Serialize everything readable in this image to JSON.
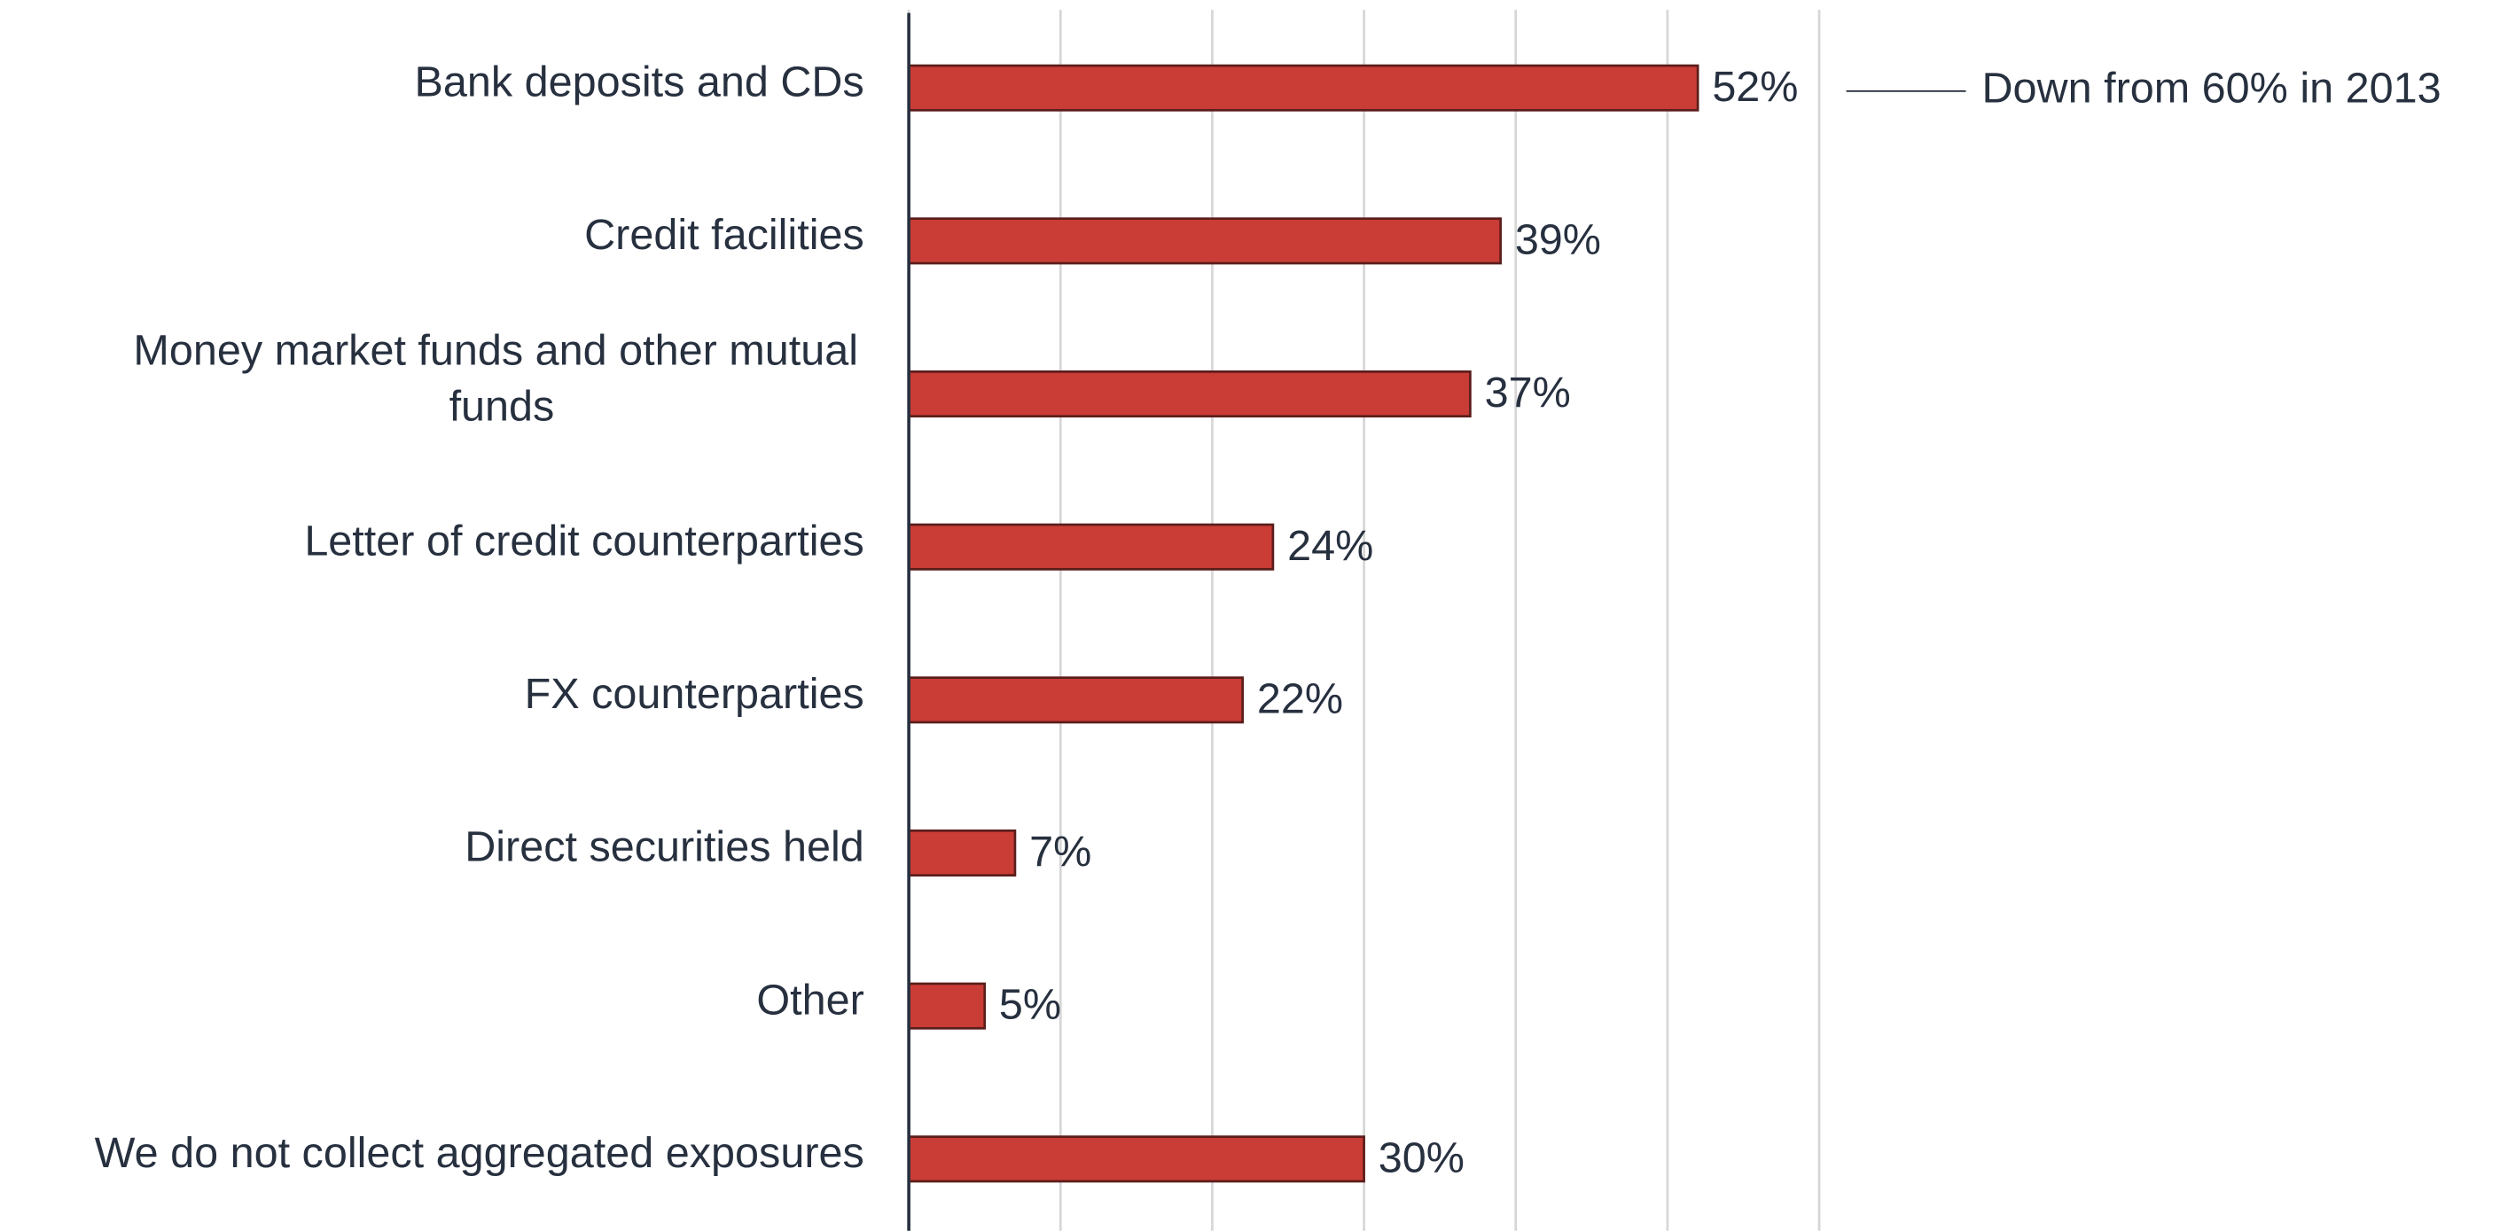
{
  "chart_data": {
    "type": "bar",
    "orientation": "horizontal",
    "categories": [
      "Bank deposits and CDs",
      "Credit facilities",
      "Money market funds and other mutual funds",
      "Letter of credit counterparties",
      "FX counterparties",
      "Direct securities held",
      "Other",
      "We do not collect aggregated exposures"
    ],
    "values": [
      52,
      39,
      37,
      24,
      22,
      7,
      5,
      30
    ],
    "value_labels": [
      "52%",
      "39%",
      "37%",
      "24%",
      "22%",
      "7%",
      "5%",
      "30%"
    ],
    "color": "#c93d36",
    "xlim": [
      0,
      60
    ],
    "xticks": [
      0,
      10,
      20,
      30,
      40,
      50,
      60
    ],
    "grid": true,
    "annotations": [
      {
        "text": "Down from 60% in 2013",
        "category_index": 0
      }
    ]
  }
}
